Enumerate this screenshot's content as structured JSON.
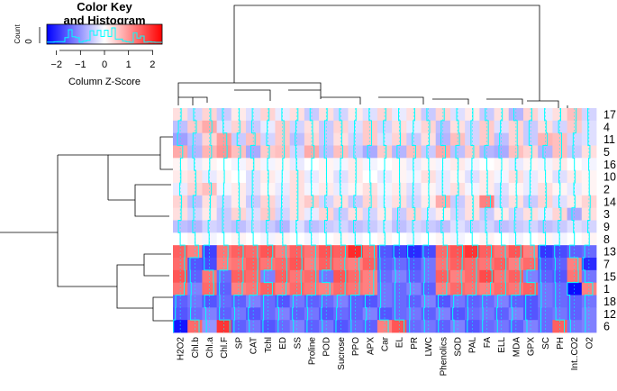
{
  "chart_data": {
    "type": "heatmap",
    "title": "",
    "color_key": {
      "title_line1": "Color Key",
      "title_line2": "and Histogram",
      "xlabel": "Column Z-Score",
      "ylabel": "Count",
      "y_tick": "0",
      "ticks": [
        "−2",
        "−1",
        "0",
        "1",
        "2"
      ],
      "range": [
        -2.4,
        2.4
      ],
      "low_color": "#0000ff",
      "mid_color": "#ffffff",
      "high_color": "#ff0000",
      "trace_color": "#00ffff"
    },
    "columns": [
      "H2O2",
      "Chl.b",
      "Chl.a",
      "Chl.F",
      "SP",
      "CAT",
      "Tchl",
      "ED",
      "SS",
      "Proline",
      "POD",
      "Sucrose",
      "PPO",
      "APX",
      "Car",
      "EL",
      "PR",
      "LWC",
      "Phenolics",
      "SOD",
      "PAL",
      "FA",
      "ELL",
      "MDA",
      "GPX",
      "SC",
      "PH",
      "Int..CO2",
      "O2"
    ],
    "rows": [
      "17",
      "4",
      "11",
      "5",
      "16",
      "10",
      "2",
      "14",
      "3",
      "9",
      "8",
      "13",
      "7",
      "15",
      "1",
      "18",
      "12",
      "6"
    ],
    "values": [
      [
        0.3,
        -0.4,
        0.4,
        -0.5,
        0.2,
        -0.3,
        0.4,
        -0.2,
        0.3,
        -0.5,
        0.3,
        -0.4,
        0.2,
        -0.3,
        0.4,
        -0.2,
        0.3,
        -0.5,
        0.4,
        -0.3,
        0.2,
        -0.5,
        0.3,
        -0.7,
        0.4,
        -0.2,
        0.3,
        0.6,
        -0.4
      ],
      [
        -0.6,
        0.5,
        0.8,
        -0.3,
        0.4,
        -0.5,
        -0.2,
        0.5,
        -0.4,
        0.3,
        -0.5,
        0.4,
        -0.3,
        0.5,
        -0.4,
        0.3,
        -0.2,
        0.4,
        -0.6,
        0.3,
        -0.4,
        0.5,
        -0.3,
        0.4,
        -0.5,
        0.3,
        -0.4,
        0.5,
        -0.3
      ],
      [
        -0.9,
        -0.6,
        0.4,
        0.9,
        -0.5,
        0.6,
        -0.4,
        0.5,
        -0.6,
        0.4,
        -0.5,
        0.3,
        -0.4,
        0.5,
        -0.3,
        0.4,
        -0.5,
        0.3,
        -0.7,
        0.6,
        -0.4,
        0.5,
        -0.6,
        0.4,
        -0.5,
        0.7,
        0.6,
        -0.4,
        -0.3
      ],
      [
        0.8,
        -0.7,
        0.7,
        1.0,
        0.6,
        -0.8,
        0.5,
        0.6,
        -0.4,
        0.8,
        -0.6,
        0.6,
        -0.5,
        -0.8,
        0.5,
        -0.7,
        0.6,
        -0.5,
        0.8,
        -0.6,
        0.5,
        -0.7,
        -0.8,
        0.6,
        0.4,
        -0.7,
        0.6,
        -0.5,
        0.3
      ],
      [
        0.1,
        -0.2,
        0.1,
        0.0,
        -0.1,
        0.2,
        -0.1,
        0.1,
        -0.2,
        0.0,
        0.1,
        -0.1,
        0.2,
        -0.1,
        0.0,
        0.1,
        -0.2,
        0.1,
        -0.1,
        0.2,
        -0.1,
        0.0,
        0.1,
        -0.2,
        0.1,
        -0.1,
        0.2,
        0.0,
        -0.1
      ],
      [
        0.2,
        0.3,
        -0.2,
        0.1,
        0.0,
        -0.3,
        0.2,
        -0.1,
        0.3,
        -0.2,
        0.1,
        -0.3,
        0.2,
        0.0,
        -0.2,
        0.1,
        -0.1,
        0.3,
        -0.2,
        0.1,
        -0.3,
        0.2,
        -0.1,
        0.3,
        -0.2,
        0.1,
        -0.3,
        0.2,
        0.1
      ],
      [
        -0.2,
        0.4,
        0.6,
        -0.1,
        0.2,
        -0.3,
        0.1,
        -0.2,
        0.3,
        -0.1,
        0.2,
        -0.2,
        0.1,
        0.3,
        -0.1,
        0.2,
        -0.3,
        0.1,
        -0.2,
        0.3,
        -0.1,
        0.2,
        -0.3,
        0.1,
        -0.2,
        0.3,
        0.1,
        -0.2,
        0.1
      ],
      [
        0.4,
        -0.6,
        0.3,
        -0.4,
        0.2,
        -0.5,
        0.4,
        -0.3,
        0.3,
        0.5,
        -0.4,
        0.3,
        -0.5,
        0.4,
        -0.2,
        0.3,
        -0.4,
        0.2,
        0.8,
        -0.5,
        0.3,
        1.2,
        -0.4,
        0.3,
        -0.5,
        0.4,
        -0.3,
        0.2,
        0.4
      ],
      [
        0.3,
        -0.4,
        0.2,
        -0.5,
        0.4,
        -0.3,
        0.5,
        -0.4,
        0.3,
        -0.2,
        0.4,
        -0.5,
        0.3,
        -0.4,
        0.2,
        -0.5,
        0.4,
        -0.3,
        0.2,
        -0.4,
        0.3,
        -0.5,
        0.2,
        -0.4,
        0.3,
        -0.2,
        0.4,
        -0.8,
        0.3
      ],
      [
        -0.6,
        -0.7,
        -0.4,
        -0.5,
        -0.6,
        -0.4,
        -0.5,
        -0.7,
        -0.3,
        -0.6,
        -0.5,
        -0.4,
        -0.6,
        -0.5,
        -0.3,
        -0.6,
        -0.4,
        -0.5,
        -0.6,
        -0.3,
        -0.5,
        -0.4,
        -0.6,
        -0.5,
        -0.4,
        -0.6,
        -0.5,
        -0.3,
        -0.4
      ],
      [
        0.0,
        0.1,
        -0.1,
        0.0,
        0.1,
        0.0,
        -0.1,
        0.1,
        0.0,
        -0.1,
        0.0,
        0.1,
        -0.1,
        0.0,
        0.1,
        0.0,
        -0.1,
        0.0,
        0.1,
        -0.1,
        0.0,
        0.1,
        0.0,
        -0.1,
        0.0,
        0.1,
        -0.1,
        0.0,
        0.1
      ],
      [
        1.5,
        1.2,
        -1.8,
        1.3,
        1.5,
        1.4,
        1.6,
        1.2,
        1.5,
        1.3,
        1.6,
        1.5,
        2.0,
        1.4,
        -1.6,
        -1.8,
        -2.0,
        -1.7,
        1.4,
        1.6,
        1.9,
        1.5,
        1.3,
        1.6,
        1.2,
        -1.9,
        -1.7,
        -1.5,
        -1.4
      ],
      [
        1.4,
        -1.6,
        -1.7,
        1.2,
        1.3,
        1.5,
        1.3,
        1.4,
        1.6,
        1.2,
        1.5,
        1.3,
        1.2,
        1.5,
        -1.5,
        -1.4,
        -1.6,
        -1.3,
        1.3,
        1.5,
        1.4,
        1.3,
        1.5,
        1.2,
        1.4,
        -1.6,
        -1.5,
        1.2,
        -2.0
      ],
      [
        1.6,
        -1.5,
        1.3,
        -1.4,
        1.5,
        1.4,
        -1.2,
        1.5,
        1.3,
        1.4,
        -1.3,
        1.6,
        1.4,
        1.2,
        -1.4,
        -1.2,
        -1.5,
        -1.3,
        1.5,
        1.2,
        1.4,
        1.7,
        1.3,
        1.5,
        -1.2,
        -1.5,
        -1.6,
        1.3,
        -1.3
      ],
      [
        1.3,
        -1.2,
        1.4,
        -1.5,
        1.2,
        1.3,
        1.5,
        1.2,
        1.4,
        1.3,
        1.2,
        1.4,
        1.3,
        1.2,
        -1.3,
        -1.4,
        -1.2,
        -1.5,
        1.2,
        1.4,
        1.3,
        1.2,
        1.4,
        1.3,
        1.5,
        -1.3,
        -1.4,
        -2.3,
        1.2
      ],
      [
        -1.5,
        -1.3,
        -1.6,
        -1.4,
        -1.5,
        -1.2,
        -1.4,
        -1.6,
        -1.3,
        -1.5,
        -1.4,
        -1.2,
        -1.5,
        -1.6,
        -1.3,
        -1.4,
        -1.5,
        -1.2,
        -1.6,
        -1.3,
        -1.5,
        -1.4,
        -1.2,
        -1.5,
        -1.6,
        -1.3,
        -1.4,
        -1.5,
        -1.3
      ],
      [
        -1.6,
        -1.4,
        -1.2,
        -1.5,
        -1.3,
        -1.6,
        -1.4,
        -1.2,
        -1.5,
        -1.3,
        -1.6,
        -1.4,
        -1.5,
        -1.2,
        -1.6,
        -1.4,
        -1.3,
        -1.5,
        -1.2,
        -1.6,
        -1.4,
        -1.3,
        -1.5,
        -1.2,
        -1.6,
        -1.4,
        -1.3,
        -1.5,
        -1.2
      ],
      [
        -2.2,
        1.4,
        -1.0,
        1.9,
        -1.5,
        -1.3,
        -1.6,
        -1.4,
        -1.2,
        -1.5,
        -1.3,
        -1.6,
        -1.4,
        -1.5,
        1.2,
        1.6,
        -1.4,
        -1.3,
        -1.5,
        -1.2,
        -1.6,
        -1.4,
        -1.3,
        -1.5,
        -1.2,
        -1.4,
        1.5,
        -1.3,
        -1.2
      ]
    ]
  }
}
